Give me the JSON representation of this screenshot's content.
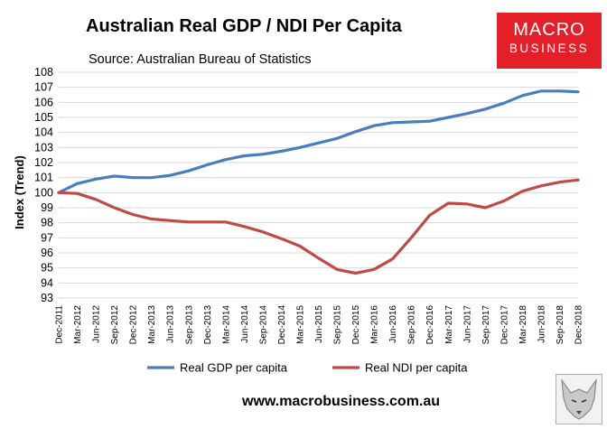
{
  "chart_data": {
    "type": "line",
    "title": "Australian Real GDP / NDI Per Capita",
    "subtitle": "Source: Australian Bureau of Statistics",
    "ylabel": "Index (Trend)",
    "xlabel": "",
    "ylim": [
      93,
      108
    ],
    "yticks": [
      93,
      94,
      95,
      96,
      97,
      98,
      99,
      100,
      101,
      102,
      103,
      104,
      105,
      106,
      107,
      108
    ],
    "grid": true,
    "legend": "bottom",
    "categories": [
      "Dec-2011",
      "Mar-2012",
      "Jun-2012",
      "Sep-2012",
      "Dec-2012",
      "Mar-2013",
      "Jun-2013",
      "Sep-2013",
      "Dec-2013",
      "Mar-2014",
      "Jun-2014",
      "Sep-2014",
      "Dec-2014",
      "Mar-2015",
      "Jun-2015",
      "Sep-2015",
      "Dec-2015",
      "Mar-2016",
      "Jun-2016",
      "Sep-2016",
      "Dec-2016",
      "Mar-2017",
      "Jun-2017",
      "Sep-2017",
      "Dec-2017",
      "Mar-2018",
      "Jun-2018",
      "Sep-2018",
      "Dec-2018"
    ],
    "series": [
      {
        "name": "Real GDP per capita",
        "color": "#4a7ebb",
        "values": [
          100.0,
          100.6,
          100.9,
          101.1,
          101.0,
          101.0,
          101.15,
          101.45,
          101.85,
          102.2,
          102.45,
          102.55,
          102.75,
          103.0,
          103.3,
          103.6,
          104.05,
          104.45,
          104.65,
          104.7,
          104.75,
          105.0,
          105.25,
          105.55,
          105.95,
          106.45,
          106.75,
          106.75,
          106.7
        ]
      },
      {
        "name": "Real NDI per capita",
        "color": "#be4b48",
        "values": [
          100.0,
          99.95,
          99.55,
          99.0,
          98.55,
          98.25,
          98.15,
          98.05,
          98.05,
          98.05,
          97.75,
          97.4,
          96.95,
          96.45,
          95.65,
          94.9,
          94.65,
          94.9,
          95.6,
          97.0,
          98.5,
          99.3,
          99.25,
          99.0,
          99.45,
          100.1,
          100.45,
          100.7,
          100.85
        ]
      }
    ]
  },
  "logo": {
    "line1": "MACRO",
    "line2": "BUSINESS",
    "color": "#e3202a"
  },
  "footer": {
    "url": "www.macrobusiness.com.au"
  },
  "watermark_icon": "wolf-icon"
}
